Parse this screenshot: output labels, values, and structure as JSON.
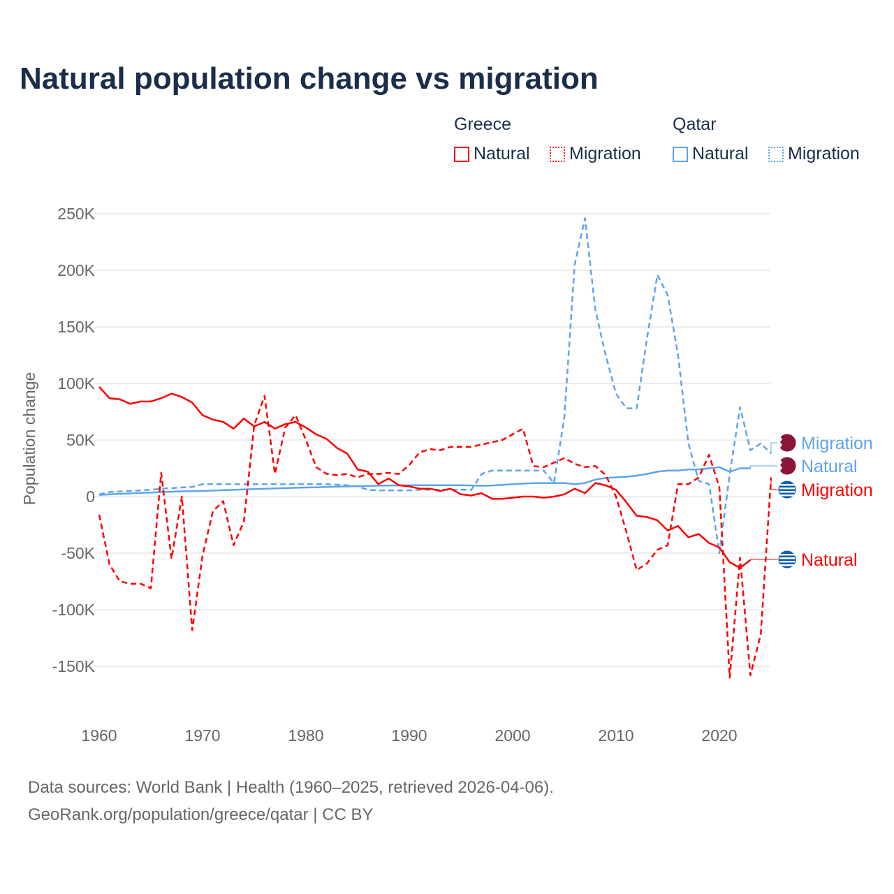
{
  "title": "Natural population change vs migration",
  "legend": {
    "groups": [
      {
        "name": "Greece",
        "items": [
          "Natural",
          "Migration"
        ],
        "color": "#ff0000"
      },
      {
        "name": "Qatar",
        "items": [
          "Natural",
          "Migration"
        ],
        "color": "#5ea4ec"
      }
    ]
  },
  "source": {
    "line1": "Data sources: World Bank | Health (1960–2025, retrieved 2026-04-06).",
    "line2": "GeoRank.org/population/greece/qatar | CC BY"
  },
  "chart_data": {
    "type": "line",
    "title": "Natural population change vs migration",
    "ylabel": "Population change",
    "xlabel": "",
    "xlim": [
      1960,
      2025
    ],
    "ylim": [
      -175000,
      260000
    ],
    "yticks": [
      -150000,
      -100000,
      -50000,
      0,
      50000,
      100000,
      150000,
      200000,
      250000
    ],
    "ytick_labels": [
      "-150K",
      "-100K",
      "-50K",
      "0",
      "50K",
      "100K",
      "150K",
      "200K",
      "250K"
    ],
    "xticks": [
      1960,
      1970,
      1980,
      1990,
      2000,
      2010,
      2020
    ],
    "xtick_labels": [
      "1960",
      "1970",
      "1980",
      "1990",
      "2000",
      "2010",
      "2020"
    ],
    "grid": true,
    "x_start": 1960,
    "series": [
      {
        "name": "Greece Natural",
        "end_label": "Natural",
        "color": "#ff0000",
        "dash": false,
        "values": [
          97,
          87,
          86,
          82,
          84,
          84,
          87,
          91,
          88,
          83,
          72,
          68,
          66,
          60,
          69,
          62,
          66,
          60,
          64,
          66,
          61,
          55,
          51,
          43,
          38,
          24,
          22,
          11,
          16,
          10,
          9,
          7,
          7,
          5,
          7,
          2,
          1,
          3,
          -2,
          -2,
          -1,
          0,
          0,
          -1,
          0,
          2,
          7,
          3,
          12,
          10,
          6,
          -5,
          -17,
          -18,
          -21,
          -30,
          -26,
          -36,
          -33,
          -41,
          -45,
          -58,
          -63,
          -56,
          null,
          null
        ]
      },
      {
        "name": "Greece Migration",
        "end_label": "Migration",
        "color": "#ff0000",
        "dash": true,
        "values": [
          -16,
          -60,
          -75,
          -77,
          -77,
          -81,
          21,
          -55,
          0,
          -118,
          -52,
          -13,
          -4,
          -43,
          -22,
          63,
          89,
          20,
          61,
          72,
          50,
          26,
          20,
          19,
          20,
          17,
          20,
          20,
          21,
          20,
          28,
          39,
          42,
          41,
          44,
          44,
          44,
          46,
          48,
          50,
          55,
          60,
          27,
          26,
          30,
          34,
          29,
          26,
          27,
          19,
          0,
          -31,
          -65,
          -59,
          -47,
          -43,
          11,
          11,
          17,
          37,
          8,
          -160,
          -54,
          -158,
          -122,
          17
        ]
      },
      {
        "name": "Qatar Natural",
        "end_label": "Natural",
        "color": "#5ea4ec",
        "dash": false,
        "values": [
          1.5,
          2,
          2.4,
          2.8,
          3.2,
          3.6,
          4,
          4.3,
          4.6,
          4.8,
          5,
          5.3,
          5.6,
          6,
          6.3,
          6.6,
          6.9,
          7.2,
          7.5,
          7.8,
          8,
          8.2,
          8.5,
          8.8,
          9,
          9.2,
          9.4,
          9.6,
          9.8,
          9.9,
          10,
          10,
          10,
          10,
          10,
          10,
          9.8,
          9.5,
          9.8,
          10.3,
          11,
          11.5,
          11.8,
          12,
          12,
          12,
          11,
          12,
          15,
          16.5,
          17,
          17.5,
          18.5,
          20,
          22,
          23,
          23,
          24,
          24,
          25,
          26,
          22,
          25,
          25,
          null,
          null
        ]
      },
      {
        "name": "Qatar Migration",
        "end_label": "Migration",
        "color": "#5ea4ec",
        "dash": true,
        "values": [
          2,
          4,
          4.5,
          5,
          5.5,
          6,
          7,
          7.5,
          8,
          8.5,
          11,
          11,
          11,
          11,
          11,
          11,
          11,
          11,
          11,
          11,
          11,
          11,
          11,
          10.5,
          10,
          9,
          6,
          5.5,
          5.5,
          5.5,
          5.5,
          6,
          6,
          6,
          6,
          6,
          6,
          20,
          23,
          23,
          23,
          23,
          23,
          23,
          12,
          70,
          205,
          246,
          165,
          125,
          91,
          78,
          78,
          140,
          196,
          178,
          125,
          47,
          14,
          11,
          -50,
          20,
          79,
          41,
          47,
          38
        ]
      }
    ],
    "value_unit": "thousands"
  }
}
